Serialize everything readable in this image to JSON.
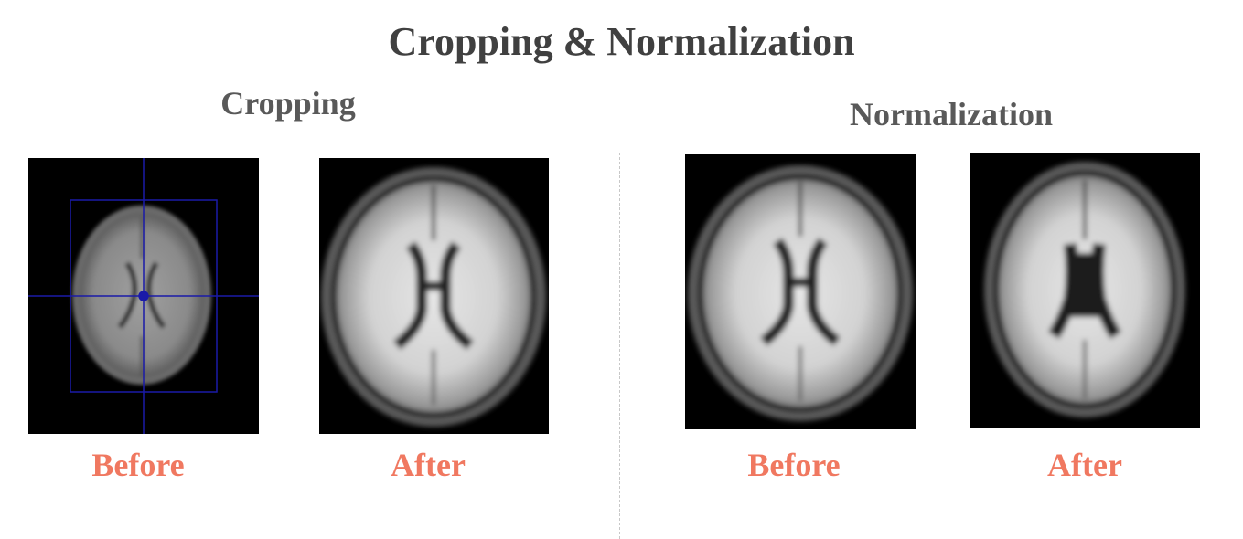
{
  "title": "Cropping & Normalization",
  "sections": {
    "cropping": {
      "heading": "Cropping",
      "before_label": "Before",
      "after_label": "After"
    },
    "normalization": {
      "heading": "Normalization",
      "before_label": "Before",
      "after_label": "After"
    }
  },
  "colors": {
    "title": "#404040",
    "heading": "#595959",
    "caption": "#f07860",
    "crosshair": "#1a1aa8",
    "image_background": "#000000"
  }
}
